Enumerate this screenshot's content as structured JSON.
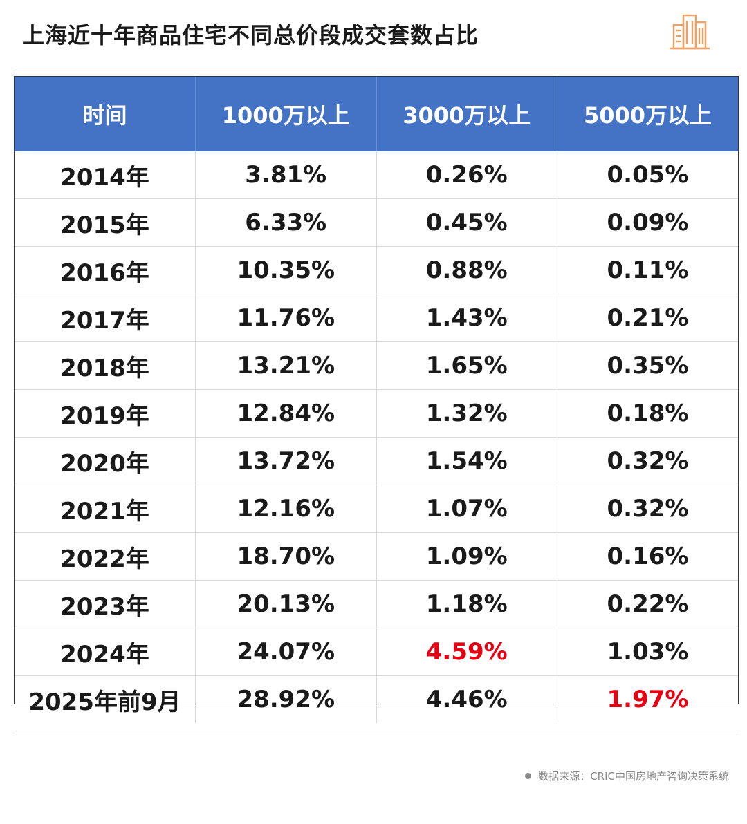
{
  "title": "上海近十年商品住宅不同总价段成交套数占比",
  "source": "数据来源：CRIC中国房地产咨询决策系统",
  "colors": {
    "header_bg": "#4472c4",
    "header_text": "#ffffff",
    "highlight": "#e60012",
    "logo": "#f0a060"
  },
  "chart_data": {
    "type": "table",
    "columns": [
      "时间",
      "1000万以上",
      "3000万以上",
      "5000万以上"
    ],
    "rows": [
      [
        "2014年",
        "3.81%",
        "0.26%",
        "0.05%"
      ],
      [
        "2015年",
        "6.33%",
        "0.45%",
        "0.09%"
      ],
      [
        "2016年",
        "10.35%",
        "0.88%",
        "0.11%"
      ],
      [
        "2017年",
        "11.76%",
        "1.43%",
        "0.21%"
      ],
      [
        "2018年",
        "13.21%",
        "1.65%",
        "0.35%"
      ],
      [
        "2019年",
        "12.84%",
        "1.32%",
        "0.18%"
      ],
      [
        "2020年",
        "13.72%",
        "1.54%",
        "0.32%"
      ],
      [
        "2021年",
        "12.16%",
        "1.07%",
        "0.32%"
      ],
      [
        "2022年",
        "18.70%",
        "1.09%",
        "0.16%"
      ],
      [
        "2023年",
        "20.13%",
        "1.18%",
        "0.22%"
      ],
      [
        "2024年",
        "24.07%",
        "4.59%",
        "1.03%"
      ],
      [
        "2025年前9月",
        "28.92%",
        "4.46%",
        "1.97%"
      ]
    ],
    "highlighted_cells": [
      {
        "row": 10,
        "col": 2
      },
      {
        "row": 11,
        "col": 3
      }
    ]
  }
}
